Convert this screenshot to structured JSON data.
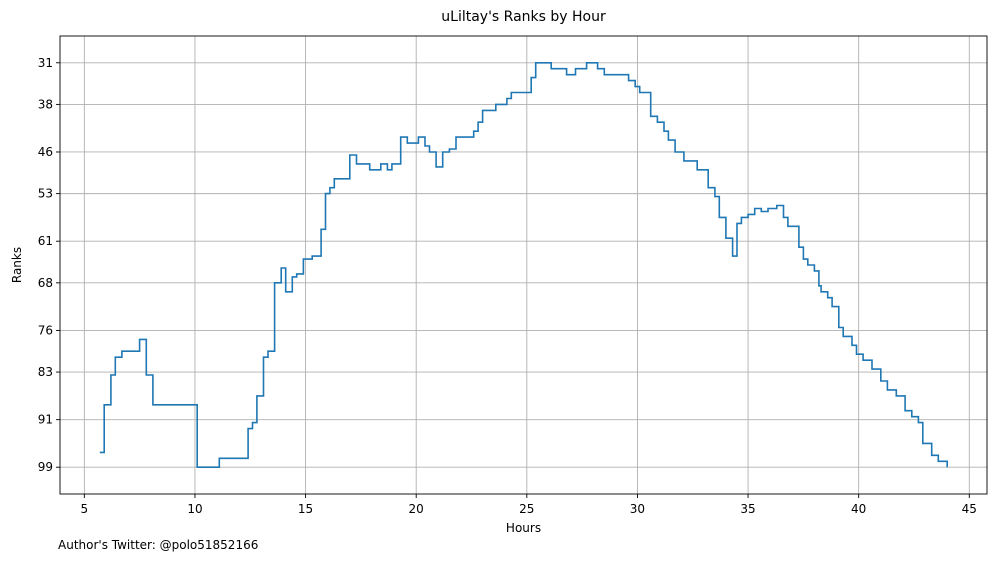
{
  "chart_data": {
    "type": "line",
    "step": true,
    "title": "uLiltay's Ranks by Hour",
    "xlabel": "Hours",
    "ylabel": "Ranks",
    "xlim": [
      3.9,
      45.8
    ],
    "ylim": [
      103.5,
      26.5
    ],
    "y_inverted": true,
    "xticks": [
      5,
      10,
      15,
      20,
      25,
      30,
      35,
      40,
      45
    ],
    "yticks": [
      31,
      38,
      46,
      53,
      61,
      68,
      76,
      83,
      91,
      99
    ],
    "grid": true,
    "legend": "none",
    "line_color": "#1f77b4",
    "series": [
      {
        "x": [
          5.7,
          5.9,
          6.2,
          6.4,
          6.7,
          7.2,
          7.5,
          7.8,
          8.1,
          10.1,
          11.1,
          12.1,
          12.4,
          12.6,
          12.8,
          13.1,
          13.3,
          13.6,
          13.9,
          14.1,
          14.4,
          14.6,
          14.9,
          15.3,
          15.5,
          15.7,
          15.9,
          16.1,
          16.3,
          17.0,
          17.3,
          17.9,
          18.1,
          18.4,
          18.7,
          18.9,
          19.3,
          19.6,
          19.9,
          20.1,
          20.4,
          20.6,
          20.9,
          21.2,
          21.5,
          21.8,
          22.0,
          22.3,
          22.6,
          22.8,
          23.0,
          23.6,
          24.1,
          24.3,
          24.9,
          25.2,
          25.4,
          25.8,
          26.1,
          26.8,
          27.2,
          27.7,
          28.2,
          28.5,
          28.9,
          29.6,
          29.9,
          30.1,
          30.3,
          30.6,
          30.9,
          31.2,
          31.4,
          31.7,
          32.1,
          32.7,
          33.2,
          33.5,
          33.7,
          34.0,
          34.3,
          34.5,
          34.7,
          35.0,
          35.3,
          35.6,
          35.9,
          36.3,
          36.6,
          36.8,
          37.0,
          37.3,
          37.5,
          37.7,
          38.0,
          38.2,
          38.3,
          38.6,
          38.8,
          39.1,
          39.3,
          39.7,
          39.9,
          40.2,
          40.6,
          41.0,
          41.3,
          41.7,
          42.1,
          42.4,
          42.7,
          42.9,
          43.3,
          43.6,
          43.8,
          44.0
        ],
        "y": [
          96.5,
          88.5,
          83.5,
          80.5,
          79.5,
          79.5,
          77.5,
          83.5,
          88.5,
          99.0,
          97.5,
          97.5,
          92.5,
          91.5,
          87.0,
          80.5,
          79.5,
          68.0,
          65.5,
          69.5,
          67.0,
          66.5,
          64.0,
          63.5,
          63.5,
          59.0,
          53.0,
          52.0,
          50.5,
          46.5,
          48.0,
          49.0,
          49.0,
          48.0,
          49.0,
          48.0,
          43.5,
          44.5,
          44.5,
          43.5,
          45.0,
          46.0,
          48.5,
          46.0,
          45.5,
          43.5,
          43.5,
          43.5,
          42.5,
          41.0,
          39.0,
          38.0,
          37.0,
          36.0,
          36.0,
          33.5,
          31.0,
          31.0,
          32.0,
          33.0,
          32.0,
          31.0,
          32.0,
          33.0,
          33.0,
          34.0,
          35.0,
          36.0,
          36.0,
          40.0,
          41.0,
          42.5,
          44.0,
          46.0,
          47.5,
          49.0,
          52.0,
          53.5,
          57.0,
          60.5,
          63.5,
          58.0,
          57.0,
          56.5,
          55.5,
          56.0,
          55.5,
          55.0,
          57.0,
          58.5,
          58.5,
          62.0,
          64.0,
          65.0,
          66.0,
          68.5,
          69.5,
          70.5,
          72.0,
          75.5,
          77.0,
          78.5,
          80.0,
          81.0,
          82.5,
          84.5,
          86.0,
          87.0,
          89.5,
          90.5,
          91.5,
          95.0,
          97.0,
          98.0,
          98.0,
          99.0
        ]
      }
    ]
  },
  "footer": {
    "author": "Author's Twitter: @polo51852166"
  }
}
